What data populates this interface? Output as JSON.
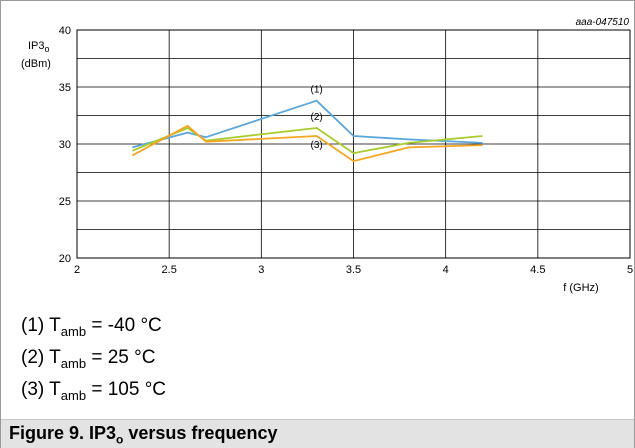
{
  "chart_data": {
    "type": "line",
    "doc_id": "aaa-047510",
    "ylabel_main": "IP3",
    "ylabel_sub": "o",
    "ylabel_unit": "(dBm)",
    "xlabel": "f (GHz)",
    "xlim": [
      2,
      5
    ],
    "ylim": [
      20,
      40
    ],
    "xticks": [
      "2",
      "2.5",
      "3",
      "3.5",
      "4",
      "4.5",
      "5"
    ],
    "yticks": [
      "20",
      "25",
      "30",
      "35",
      "40"
    ],
    "grid": true,
    "series": [
      {
        "name": "(1)",
        "color": "#5aa6dc",
        "x": [
          2.3,
          2.6,
          2.7,
          3.3,
          3.5,
          3.8,
          4.2
        ],
        "y": [
          29.7,
          31.0,
          30.6,
          33.8,
          30.7,
          30.4,
          30.1
        ]
      },
      {
        "name": "(2)",
        "color": "#a8cc2c",
        "x": [
          2.3,
          2.6,
          2.7,
          3.3,
          3.5,
          3.8,
          4.2
        ],
        "y": [
          29.4,
          31.4,
          30.3,
          31.4,
          29.2,
          30.1,
          30.7
        ]
      },
      {
        "name": "(3)",
        "color": "#f5a623",
        "x": [
          2.3,
          2.6,
          2.7,
          3.3,
          3.5,
          3.8,
          4.2
        ],
        "y": [
          29.0,
          31.6,
          30.2,
          30.7,
          28.5,
          29.7,
          29.9
        ]
      }
    ]
  },
  "legend": [
    {
      "prefix": "(1) T",
      "sub": "amb",
      "suffix": " = -40 °C"
    },
    {
      "prefix": "(2) T",
      "sub": "amb",
      "suffix": " = 25 °C"
    },
    {
      "prefix": "(3) T",
      "sub": "amb",
      "suffix": " = 105 °C"
    }
  ],
  "caption": {
    "prefix": "Figure 9.  IP3",
    "sub": "o",
    "suffix": " versus frequency"
  }
}
